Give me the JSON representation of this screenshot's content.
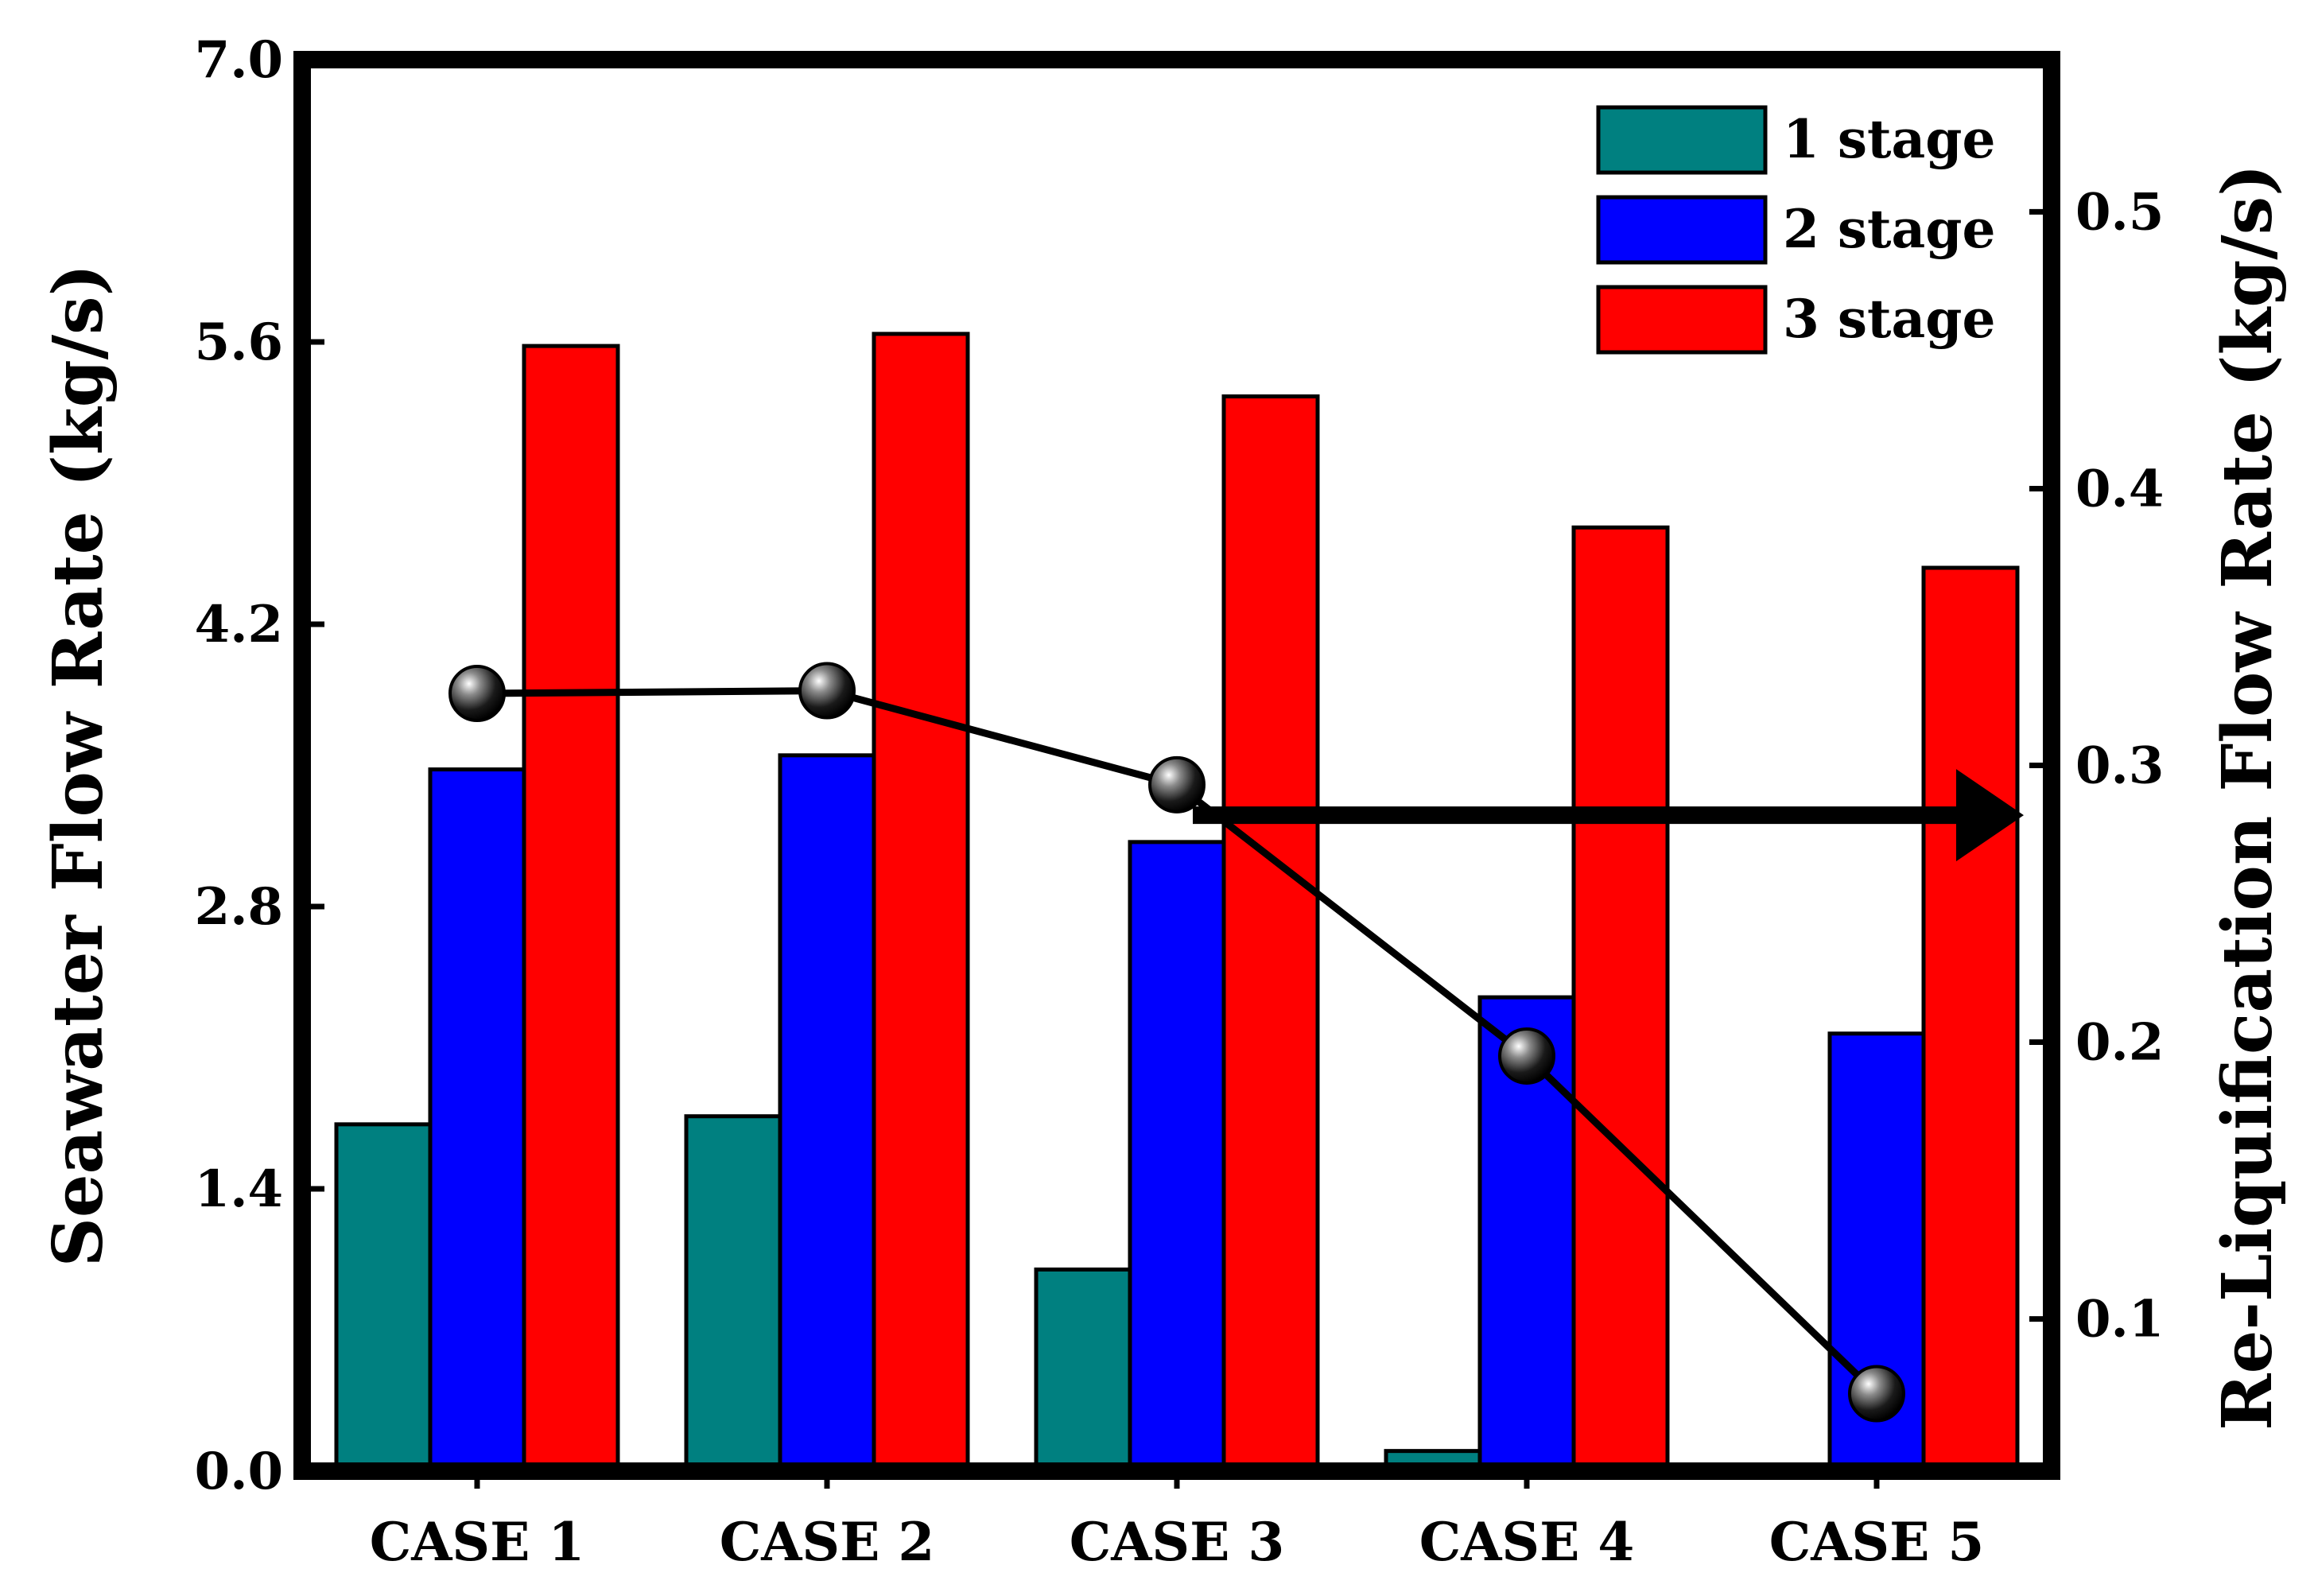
{
  "chart_data": {
    "type": "bar",
    "categories": [
      "CASE 1",
      "CASE 2",
      "CASE 3",
      "CASE 4",
      "CASE 5"
    ],
    "series": [
      {
        "name": "1 stage",
        "color": "#008080",
        "values": [
          1.72,
          1.76,
          1.0,
          0.1,
          0.0
        ]
      },
      {
        "name": "2 stage",
        "color": "#0000FF",
        "values": [
          3.48,
          3.55,
          3.12,
          2.35,
          2.17
        ]
      },
      {
        "name": "3 stage",
        "color": "#FF0000",
        "values": [
          5.58,
          5.64,
          5.33,
          4.68,
          4.48
        ]
      }
    ],
    "line_series": {
      "name": "Re-Liquification Flow Rate",
      "axis": "right",
      "color": "#000000",
      "values": [
        0.326,
        0.327,
        0.293,
        0.195,
        0.073
      ]
    },
    "y_left": {
      "label": "Seawater Flow Rate (kg/s)",
      "lim": [
        0.0,
        7.0
      ],
      "ticks": [
        0.0,
        1.4,
        2.8,
        4.2,
        5.6,
        7.0
      ],
      "tick_labels": [
        "0.0",
        "1.4",
        "2.8",
        "4.2",
        "5.6",
        "7.0"
      ]
    },
    "y_right": {
      "label": "Re-Liquification Flow Rate (kg/s)",
      "lim": [
        0.045,
        0.555
      ],
      "ticks": [
        0.1,
        0.2,
        0.3,
        0.4,
        0.5
      ],
      "tick_labels": [
        "0.1",
        "0.2",
        "0.3",
        "0.4",
        "0.5"
      ]
    },
    "legend_position": "top-right",
    "annotation": "arrow pointing to right axis",
    "grid": false
  }
}
